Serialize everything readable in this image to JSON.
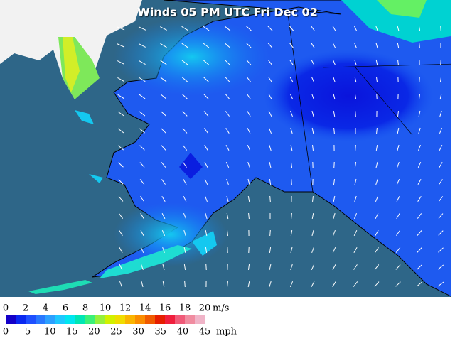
{
  "title": "Winds 05 PM UTC Fri Dec 02",
  "legend": {
    "colors": [
      "#1400c8",
      "#0a28f0",
      "#1e50ff",
      "#2878ff",
      "#2ca0ff",
      "#1ec8ff",
      "#00e6f0",
      "#00e6b4",
      "#3cf078",
      "#96f03c",
      "#d2f000",
      "#f0dc00",
      "#fab400",
      "#fa8c00",
      "#f05a00",
      "#e61e00",
      "#f01e3c",
      "#f05a78",
      "#f08ca0",
      "#f0b4c8"
    ],
    "ms": {
      "ticks": [
        0,
        2,
        4,
        6,
        8,
        10,
        12,
        14,
        16,
        18,
        20
      ],
      "unit": "m/s"
    },
    "mph": {
      "ticks": [
        0,
        5,
        10,
        15,
        20,
        25,
        30,
        35,
        40,
        45
      ],
      "unit": "mph"
    }
  }
}
